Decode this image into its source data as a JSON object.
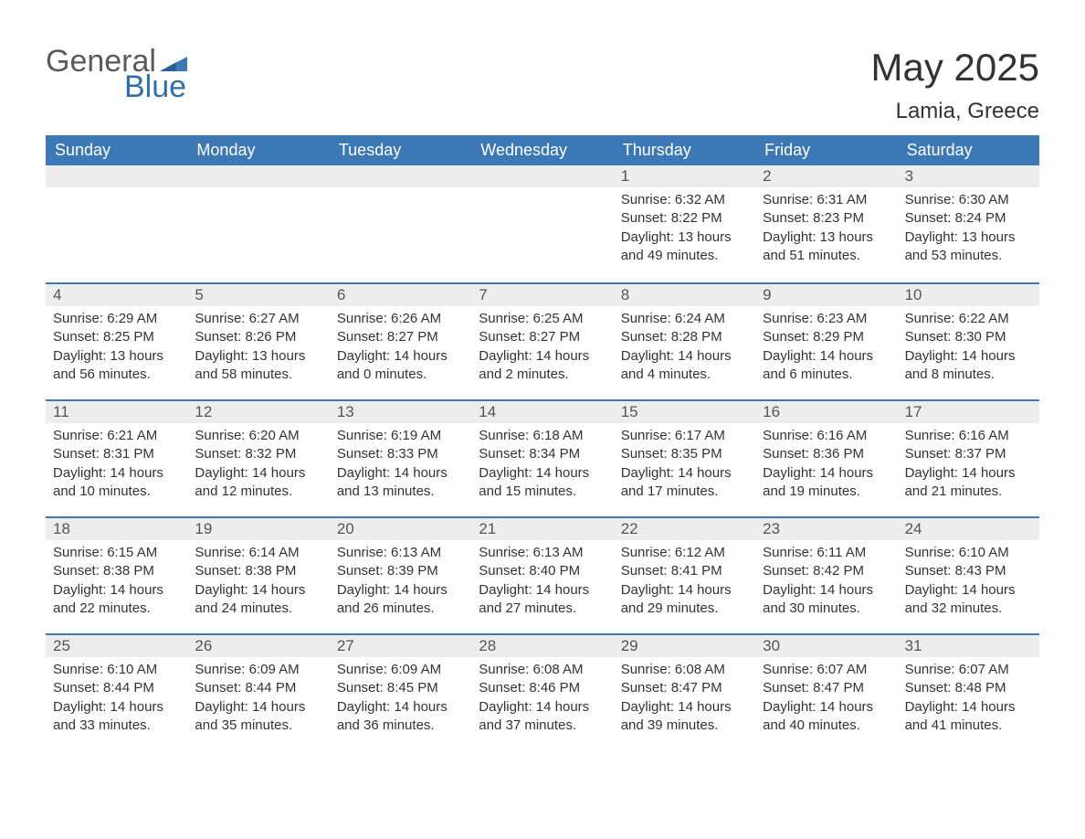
{
  "logo": {
    "word1": "General",
    "word2": "Blue"
  },
  "title": "May 2025",
  "location": "Lamia, Greece",
  "colors": {
    "header_bg": "#3b78b5",
    "header_text": "#ffffff",
    "row_border": "#3b78b5",
    "daynum_bg": "#ededed",
    "body_text": "#333333",
    "logo_gray": "#5a5a5a",
    "logo_blue": "#2f6fb0",
    "page_bg": "#ffffff"
  },
  "weekdays": [
    "Sunday",
    "Monday",
    "Tuesday",
    "Wednesday",
    "Thursday",
    "Friday",
    "Saturday"
  ],
  "weeks": [
    [
      null,
      null,
      null,
      null,
      {
        "n": "1",
        "sunrise": "6:32 AM",
        "sunset": "8:22 PM",
        "dl_h": "13",
        "dl_m": "49"
      },
      {
        "n": "2",
        "sunrise": "6:31 AM",
        "sunset": "8:23 PM",
        "dl_h": "13",
        "dl_m": "51"
      },
      {
        "n": "3",
        "sunrise": "6:30 AM",
        "sunset": "8:24 PM",
        "dl_h": "13",
        "dl_m": "53"
      }
    ],
    [
      {
        "n": "4",
        "sunrise": "6:29 AM",
        "sunset": "8:25 PM",
        "dl_h": "13",
        "dl_m": "56"
      },
      {
        "n": "5",
        "sunrise": "6:27 AM",
        "sunset": "8:26 PM",
        "dl_h": "13",
        "dl_m": "58"
      },
      {
        "n": "6",
        "sunrise": "6:26 AM",
        "sunset": "8:27 PM",
        "dl_h": "14",
        "dl_m": "0"
      },
      {
        "n": "7",
        "sunrise": "6:25 AM",
        "sunset": "8:27 PM",
        "dl_h": "14",
        "dl_m": "2"
      },
      {
        "n": "8",
        "sunrise": "6:24 AM",
        "sunset": "8:28 PM",
        "dl_h": "14",
        "dl_m": "4"
      },
      {
        "n": "9",
        "sunrise": "6:23 AM",
        "sunset": "8:29 PM",
        "dl_h": "14",
        "dl_m": "6"
      },
      {
        "n": "10",
        "sunrise": "6:22 AM",
        "sunset": "8:30 PM",
        "dl_h": "14",
        "dl_m": "8"
      }
    ],
    [
      {
        "n": "11",
        "sunrise": "6:21 AM",
        "sunset": "8:31 PM",
        "dl_h": "14",
        "dl_m": "10"
      },
      {
        "n": "12",
        "sunrise": "6:20 AM",
        "sunset": "8:32 PM",
        "dl_h": "14",
        "dl_m": "12"
      },
      {
        "n": "13",
        "sunrise": "6:19 AM",
        "sunset": "8:33 PM",
        "dl_h": "14",
        "dl_m": "13"
      },
      {
        "n": "14",
        "sunrise": "6:18 AM",
        "sunset": "8:34 PM",
        "dl_h": "14",
        "dl_m": "15"
      },
      {
        "n": "15",
        "sunrise": "6:17 AM",
        "sunset": "8:35 PM",
        "dl_h": "14",
        "dl_m": "17"
      },
      {
        "n": "16",
        "sunrise": "6:16 AM",
        "sunset": "8:36 PM",
        "dl_h": "14",
        "dl_m": "19"
      },
      {
        "n": "17",
        "sunrise": "6:16 AM",
        "sunset": "8:37 PM",
        "dl_h": "14",
        "dl_m": "21"
      }
    ],
    [
      {
        "n": "18",
        "sunrise": "6:15 AM",
        "sunset": "8:38 PM",
        "dl_h": "14",
        "dl_m": "22"
      },
      {
        "n": "19",
        "sunrise": "6:14 AM",
        "sunset": "8:38 PM",
        "dl_h": "14",
        "dl_m": "24"
      },
      {
        "n": "20",
        "sunrise": "6:13 AM",
        "sunset": "8:39 PM",
        "dl_h": "14",
        "dl_m": "26"
      },
      {
        "n": "21",
        "sunrise": "6:13 AM",
        "sunset": "8:40 PM",
        "dl_h": "14",
        "dl_m": "27"
      },
      {
        "n": "22",
        "sunrise": "6:12 AM",
        "sunset": "8:41 PM",
        "dl_h": "14",
        "dl_m": "29"
      },
      {
        "n": "23",
        "sunrise": "6:11 AM",
        "sunset": "8:42 PM",
        "dl_h": "14",
        "dl_m": "30"
      },
      {
        "n": "24",
        "sunrise": "6:10 AM",
        "sunset": "8:43 PM",
        "dl_h": "14",
        "dl_m": "32"
      }
    ],
    [
      {
        "n": "25",
        "sunrise": "6:10 AM",
        "sunset": "8:44 PM",
        "dl_h": "14",
        "dl_m": "33"
      },
      {
        "n": "26",
        "sunrise": "6:09 AM",
        "sunset": "8:44 PM",
        "dl_h": "14",
        "dl_m": "35"
      },
      {
        "n": "27",
        "sunrise": "6:09 AM",
        "sunset": "8:45 PM",
        "dl_h": "14",
        "dl_m": "36"
      },
      {
        "n": "28",
        "sunrise": "6:08 AM",
        "sunset": "8:46 PM",
        "dl_h": "14",
        "dl_m": "37"
      },
      {
        "n": "29",
        "sunrise": "6:08 AM",
        "sunset": "8:47 PM",
        "dl_h": "14",
        "dl_m": "39"
      },
      {
        "n": "30",
        "sunrise": "6:07 AM",
        "sunset": "8:47 PM",
        "dl_h": "14",
        "dl_m": "40"
      },
      {
        "n": "31",
        "sunrise": "6:07 AM",
        "sunset": "8:48 PM",
        "dl_h": "14",
        "dl_m": "41"
      }
    ]
  ],
  "labels": {
    "sunrise": "Sunrise:",
    "sunset": "Sunset:",
    "daylight_prefix": "Daylight:",
    "hours_word": "hours",
    "and_word": "and",
    "minutes_word": "minutes."
  }
}
